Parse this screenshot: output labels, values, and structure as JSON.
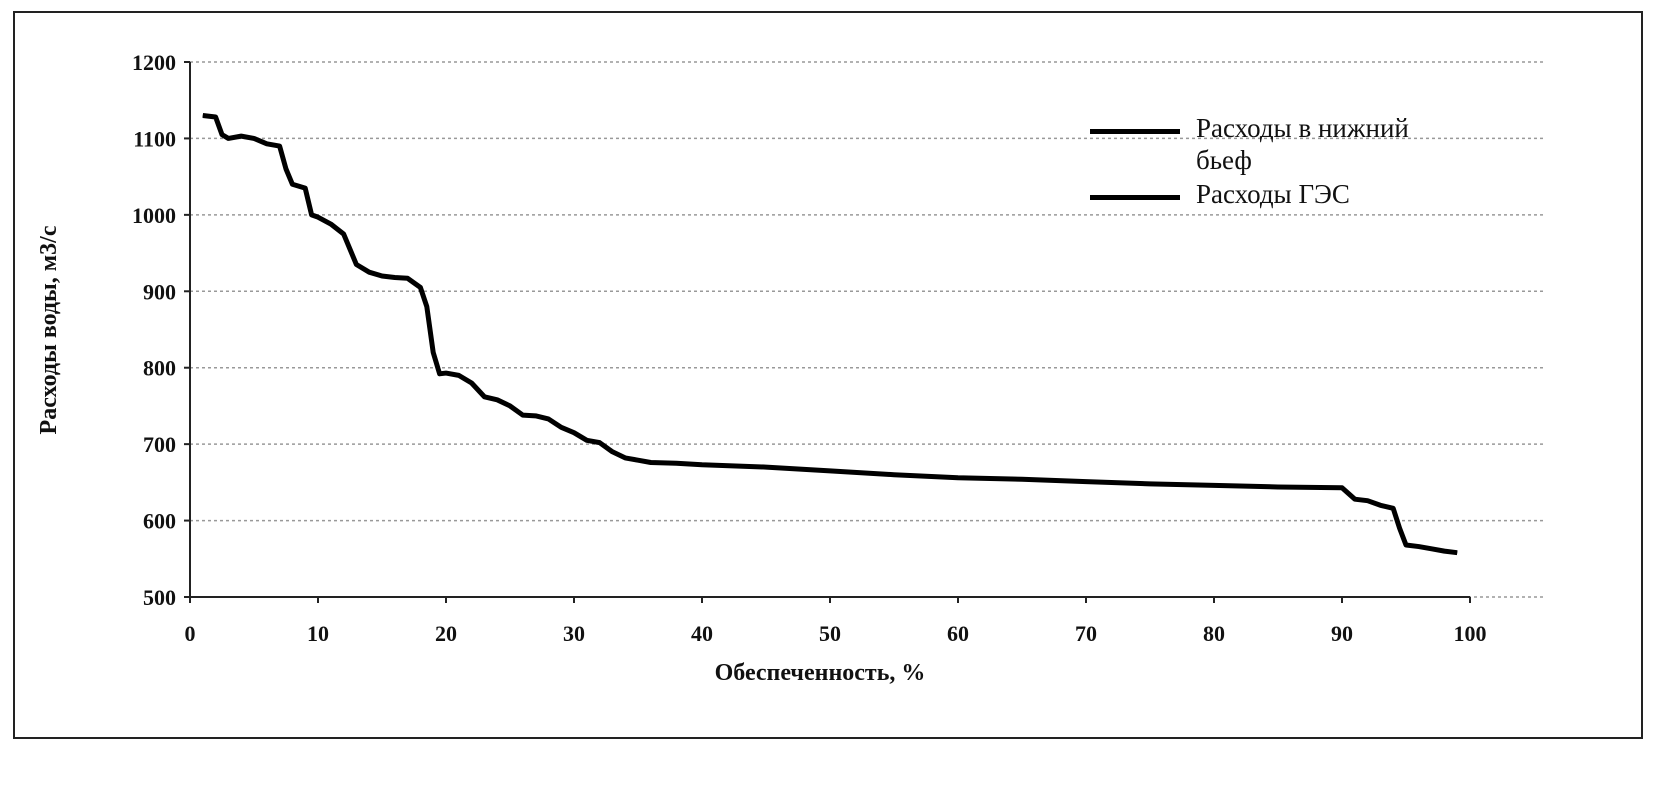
{
  "chart_data": {
    "type": "line",
    "xlabel": "Обеспеченность, %",
    "ylabel": "Расходы воды, м3/с",
    "x": [
      1,
      2,
      2.5,
      3,
      4,
      5,
      6,
      7,
      7.5,
      8,
      9,
      9.5,
      10,
      11,
      12,
      12.5,
      13,
      14,
      15,
      16,
      17,
      18,
      18.5,
      19,
      19.5,
      20,
      21,
      22,
      23,
      24,
      25,
      26,
      27,
      28,
      29,
      30,
      31,
      32,
      33,
      34,
      35,
      36,
      38,
      40,
      45,
      50,
      55,
      60,
      65,
      70,
      75,
      80,
      85,
      90,
      91,
      92,
      93,
      94,
      94.5,
      95,
      96,
      97,
      98,
      99
    ],
    "series": [
      {
        "name": "Расходы в нижний бьеф",
        "color": "#000000",
        "values": [
          1130,
          1128,
          1105,
          1100,
          1103,
          1100,
          1093,
          1090,
          1060,
          1040,
          1035,
          1000,
          997,
          988,
          975,
          955,
          935,
          925,
          920,
          918,
          917,
          905,
          880,
          820,
          792,
          793,
          790,
          780,
          762,
          758,
          750,
          738,
          737,
          733,
          722,
          715,
          705,
          702,
          690,
          682,
          679,
          676,
          675,
          673,
          670,
          665,
          660,
          656,
          654,
          651,
          648,
          646,
          644,
          643,
          628,
          626,
          620,
          616,
          590,
          568,
          566,
          563,
          560,
          558
        ]
      },
      {
        "name": "Расходы ГЭС",
        "color": "#000000",
        "values": [
          1130,
          1128,
          1105,
          1100,
          1103,
          1100,
          1093,
          1090,
          1060,
          1040,
          1035,
          1000,
          997,
          988,
          975,
          955,
          935,
          925,
          920,
          918,
          917,
          905,
          880,
          820,
          792,
          793,
          790,
          780,
          762,
          758,
          750,
          738,
          737,
          733,
          722,
          715,
          705,
          702,
          690,
          682,
          679,
          676,
          675,
          673,
          670,
          665,
          660,
          656,
          654,
          651,
          648,
          646,
          644,
          643,
          628,
          626,
          620,
          616,
          590,
          568,
          566,
          563,
          560,
          558
        ]
      }
    ],
    "xlim": [
      0,
      100
    ],
    "xticks": [
      0,
      10,
      20,
      30,
      40,
      50,
      60,
      70,
      80,
      90,
      100
    ],
    "ylim": [
      500,
      1200
    ],
    "yticks": [
      500,
      600,
      700,
      800,
      900,
      1000,
      1100,
      1200
    ],
    "grid": true,
    "legend": "top-right"
  }
}
